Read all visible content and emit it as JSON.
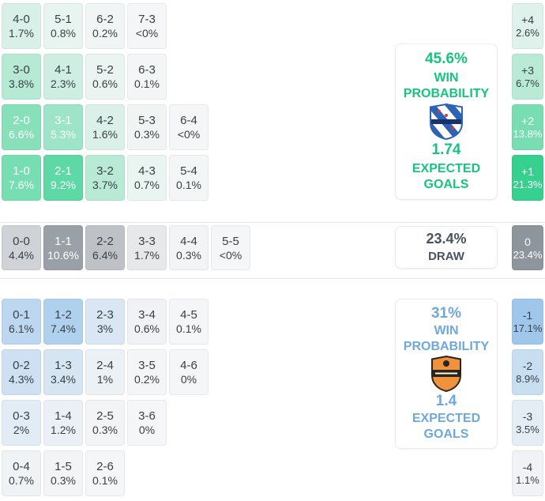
{
  "chart_data": {
    "type": "heatmap",
    "description": "Correct score probability matrix with win/draw probabilities, expected goals and goal-margin distribution",
    "sections": [
      {
        "id": "home",
        "kind": "home-win",
        "accent": "#2fce8b",
        "panel": {
          "probability": "45.6%",
          "probability_label": "WIN PROBABILITY",
          "expected_goals": "1.74",
          "expected_goals_label": "EXPECTED GOALS"
        },
        "rows": [
          [
            {
              "score": "4-0",
              "pct": "1.7%"
            },
            {
              "score": "5-1",
              "pct": "0.8%"
            },
            {
              "score": "6-2",
              "pct": "0.2%"
            },
            {
              "score": "7-3",
              "pct": "<0%"
            }
          ],
          [
            {
              "score": "3-0",
              "pct": "3.8%"
            },
            {
              "score": "4-1",
              "pct": "2.3%"
            },
            {
              "score": "5-2",
              "pct": "0.6%"
            },
            {
              "score": "6-3",
              "pct": "0.1%"
            }
          ],
          [
            {
              "score": "2-0",
              "pct": "6.6%"
            },
            {
              "score": "3-1",
              "pct": "5.3%"
            },
            {
              "score": "4-2",
              "pct": "1.6%"
            },
            {
              "score": "5-3",
              "pct": "0.3%"
            },
            {
              "score": "6-4",
              "pct": "<0%"
            }
          ],
          [
            {
              "score": "1-0",
              "pct": "7.6%"
            },
            {
              "score": "2-1",
              "pct": "9.2%"
            },
            {
              "score": "3-2",
              "pct": "3.7%"
            },
            {
              "score": "4-3",
              "pct": "0.7%"
            },
            {
              "score": "5-4",
              "pct": "0.1%"
            }
          ]
        ],
        "margins": [
          {
            "label": "+4",
            "pct": "2.6%"
          },
          {
            "label": "+3",
            "pct": "6.7%"
          },
          {
            "label": "+2",
            "pct": "13.8%"
          },
          {
            "label": "+1",
            "pct": "21.3%"
          }
        ]
      },
      {
        "id": "draw",
        "kind": "draw",
        "accent": "#8e959c",
        "panel": {
          "probability": "23.4%",
          "probability_label": "DRAW"
        },
        "rows": [
          [
            {
              "score": "0-0",
              "pct": "4.4%"
            },
            {
              "score": "1-1",
              "pct": "10.6%"
            },
            {
              "score": "2-2",
              "pct": "6.4%"
            },
            {
              "score": "3-3",
              "pct": "1.7%"
            },
            {
              "score": "4-4",
              "pct": "0.3%"
            },
            {
              "score": "5-5",
              "pct": "<0%"
            }
          ]
        ],
        "margins": [
          {
            "label": "0",
            "pct": "23.4%"
          }
        ]
      },
      {
        "id": "away",
        "kind": "away-win",
        "accent": "#86b9e8",
        "panel": {
          "probability": "31%",
          "probability_label": "WIN PROBABILITY",
          "expected_goals": "1.4",
          "expected_goals_label": "EXPECTED GOALS"
        },
        "rows": [
          [
            {
              "score": "0-1",
              "pct": "6.1%"
            },
            {
              "score": "1-2",
              "pct": "7.4%"
            },
            {
              "score": "2-3",
              "pct": "3%"
            },
            {
              "score": "3-4",
              "pct": "0.6%"
            },
            {
              "score": "4-5",
              "pct": "0.1%"
            }
          ],
          [
            {
              "score": "0-2",
              "pct": "4.3%"
            },
            {
              "score": "1-3",
              "pct": "3.4%"
            },
            {
              "score": "2-4",
              "pct": "1%"
            },
            {
              "score": "3-5",
              "pct": "0.2%"
            },
            {
              "score": "4-6",
              "pct": "0%"
            }
          ],
          [
            {
              "score": "0-3",
              "pct": "2%"
            },
            {
              "score": "1-4",
              "pct": "1.2%"
            },
            {
              "score": "2-5",
              "pct": "0.3%"
            },
            {
              "score": "3-6",
              "pct": "0%"
            }
          ],
          [
            {
              "score": "0-4",
              "pct": "0.7%"
            },
            {
              "score": "1-5",
              "pct": "0.3%"
            },
            {
              "score": "2-6",
              "pct": "0.1%"
            }
          ]
        ],
        "margins": [
          {
            "label": "-1",
            "pct": "17.1%"
          },
          {
            "label": "-2",
            "pct": "8.9%"
          },
          {
            "label": "-3",
            "pct": "3.5%"
          },
          {
            "label": "-4",
            "pct": "1.1%"
          }
        ]
      }
    ]
  },
  "colors": {
    "home_accent": "#2fce8b",
    "home_text": "#15c57e",
    "draw_accent": "#8e959c",
    "draw_text": "#49525e",
    "away_accent": "#86b9e8",
    "away_text": "#6fa8da"
  },
  "icons": {
    "home_team_logo": "blue-and-white diagonally striped crest with red accents",
    "away_team_logo": "orange crest with dark horizontal band"
  }
}
